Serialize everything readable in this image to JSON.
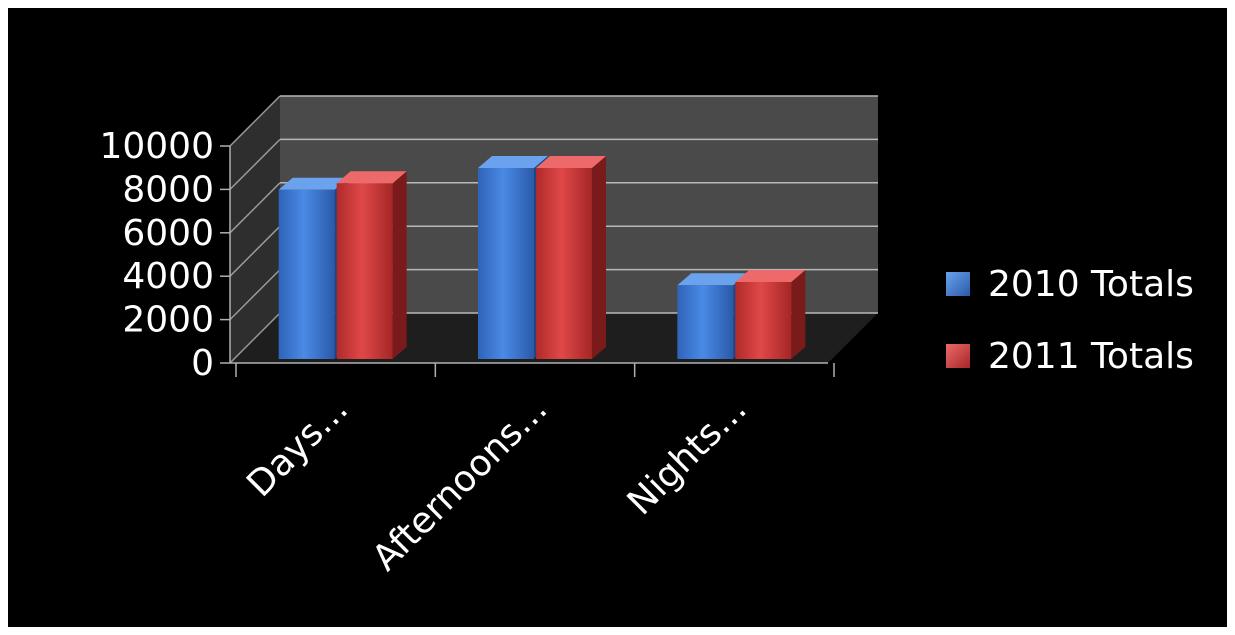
{
  "chart_data": {
    "type": "bar",
    "three_d": true,
    "categories": [
      "Days...",
      "Afternoons...",
      "Nights..."
    ],
    "series": [
      {
        "name": "2010 Totals",
        "color": "#3b78d6",
        "values": [
          7800,
          8800,
          3400
        ]
      },
      {
        "name": "2011 Totals",
        "color": "#d23b3b",
        "values": [
          8100,
          8800,
          3550
        ]
      }
    ],
    "ylim": [
      0,
      10000
    ],
    "yticks": [
      "0",
      "2000",
      "4000",
      "6000",
      "8000",
      "10000"
    ],
    "grid": true,
    "legend_position": "right",
    "background_color": "#000000",
    "plot_wall_color": "#4a4a4a"
  }
}
